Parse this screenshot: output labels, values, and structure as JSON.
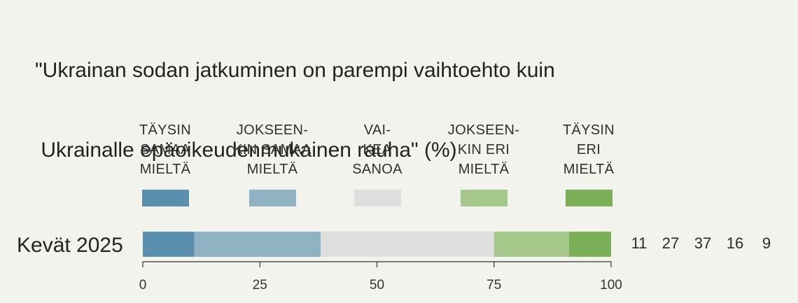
{
  "chart_data": {
    "type": "bar",
    "orientation": "horizontal-stacked",
    "title_lines": [
      "\"Ukrainan sodan jatkuminen on parempi vaihtoehto kuin",
      " Ukrainalle epäoikeudenmukainen rauha\" (%)"
    ],
    "categories": [
      "Kevät 2025"
    ],
    "series": [
      {
        "name": "TÄYSIN SAMAA MIELTÄ",
        "name_lines": [
          "TÄYSIN",
          "SAMAA",
          "MIELTÄ"
        ],
        "values": [
          11
        ],
        "color": "#5a8fae"
      },
      {
        "name": "JOKSEEN-KIN SAMAA MIELTÄ",
        "name_lines": [
          "JOKSEEN-",
          "KIN SAMAA",
          "MIELTÄ"
        ],
        "values": [
          27
        ],
        "color": "#90b3c4"
      },
      {
        "name": "VAI-KEA SANOA",
        "name_lines": [
          "VAI-",
          "KEA",
          "SANOA"
        ],
        "values": [
          37
        ],
        "color": "#dedede"
      },
      {
        "name": "JOKSEEN-KIN ERI MIELTÄ",
        "name_lines": [
          "JOKSEEN-",
          "KIN ERI",
          "MIELTÄ"
        ],
        "values": [
          16
        ],
        "color": "#a4c78a"
      },
      {
        "name": "TÄYSIN ERI MIELTÄ",
        "name_lines": [
          "TÄYSIN",
          "ERI",
          "MIELTÄ"
        ],
        "values": [
          9
        ],
        "color": "#7aaf58"
      }
    ],
    "value_labels": [
      "11",
      "27",
      "37",
      "16",
      "9"
    ],
    "xlim": [
      0,
      100
    ],
    "xticks": [
      0,
      25,
      50,
      75,
      100
    ],
    "xtick_labels": [
      "0",
      "25",
      "50",
      "75",
      "100"
    ],
    "grid": false,
    "legend_position": "top"
  }
}
